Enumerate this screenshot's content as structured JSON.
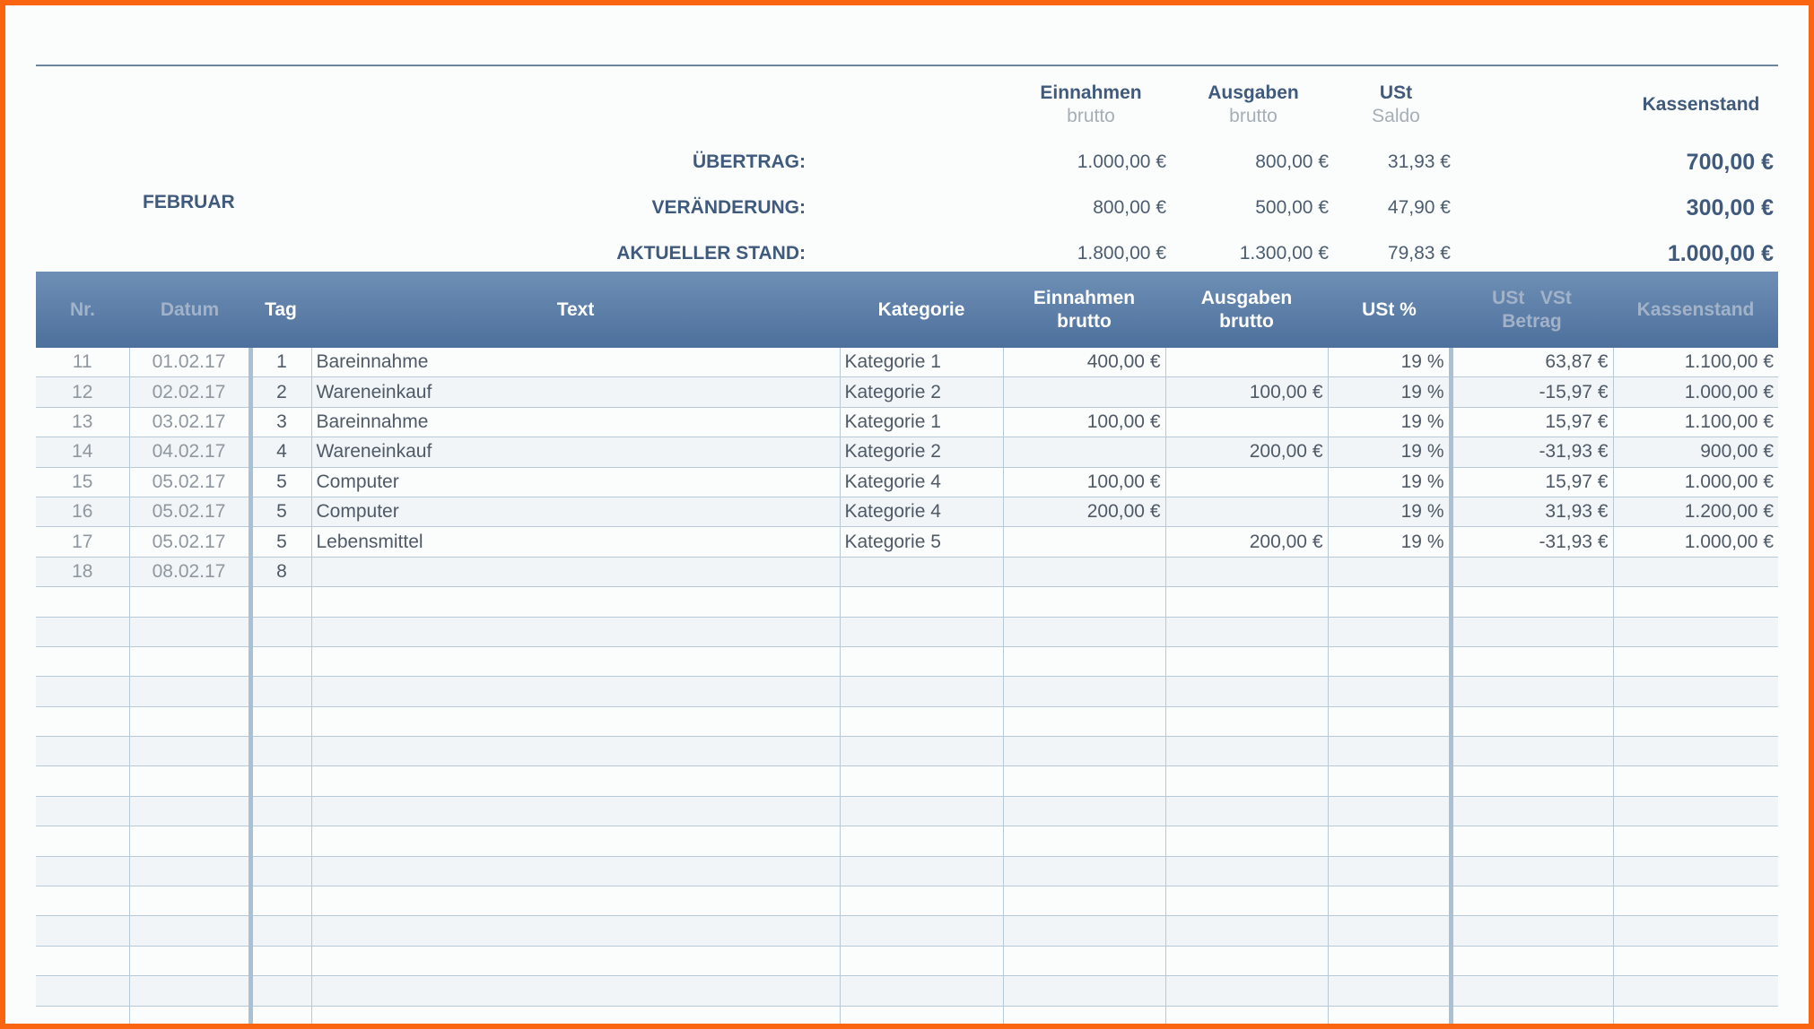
{
  "summary": {
    "headers": [
      {
        "main": "Einnahmen",
        "sub": "brutto"
      },
      {
        "main": "Ausgaben",
        "sub": "brutto"
      },
      {
        "main": "USt",
        "sub": "Saldo"
      },
      {
        "main": "Kassenstand",
        "sub": ""
      }
    ],
    "month": "FEBRUAR",
    "rows": [
      {
        "label": "ÜBERTRAG:",
        "einnahmen": "1.000,00 €",
        "ausgaben": "800,00 €",
        "ust": "31,93 €",
        "kassenstand": "700,00 €"
      },
      {
        "label": "VERÄNDERUNG:",
        "einnahmen": "800,00 €",
        "ausgaben": "500,00 €",
        "ust": "47,90 €",
        "kassenstand": "300,00 €"
      },
      {
        "label": "AKTUELLER STAND:",
        "einnahmen": "1.800,00 €",
        "ausgaben": "1.300,00 €",
        "ust": "79,83 €",
        "kassenstand": "1.000,00 €"
      }
    ]
  },
  "table": {
    "headers": {
      "nr": "Nr.",
      "datum": "Datum",
      "tag": "Tag",
      "text": "Text",
      "kategorie": "Kategorie",
      "einnahmen_1": "Einnahmen",
      "einnahmen_2": "brutto",
      "ausgaben_1": "Ausgaben",
      "ausgaben_2": "brutto",
      "ust_pct": "USt %",
      "ust_betrag_1": "USt   VSt",
      "ust_betrag_2": "Betrag",
      "kassenstand": "Kassenstand"
    },
    "rows": [
      {
        "nr": "11",
        "datum": "01.02.17",
        "tag": "1",
        "text": "Bareinnahme",
        "kategorie": "Kategorie 1",
        "einnahmen": "400,00 €",
        "ausgaben": "",
        "ust_pct": "19 %",
        "ust_betrag": "63,87 €",
        "kassenstand": "1.100,00 €"
      },
      {
        "nr": "12",
        "datum": "02.02.17",
        "tag": "2",
        "text": "Wareneinkauf",
        "kategorie": "Kategorie 2",
        "einnahmen": "",
        "ausgaben": "100,00 €",
        "ust_pct": "19 %",
        "ust_betrag": "-15,97 €",
        "kassenstand": "1.000,00 €"
      },
      {
        "nr": "13",
        "datum": "03.02.17",
        "tag": "3",
        "text": "Bareinnahme",
        "kategorie": "Kategorie 1",
        "einnahmen": "100,00 €",
        "ausgaben": "",
        "ust_pct": "19 %",
        "ust_betrag": "15,97 €",
        "kassenstand": "1.100,00 €"
      },
      {
        "nr": "14",
        "datum": "04.02.17",
        "tag": "4",
        "text": "Wareneinkauf",
        "kategorie": "Kategorie 2",
        "einnahmen": "",
        "ausgaben": "200,00 €",
        "ust_pct": "19 %",
        "ust_betrag": "-31,93 €",
        "kassenstand": "900,00 €"
      },
      {
        "nr": "15",
        "datum": "05.02.17",
        "tag": "5",
        "text": "Computer",
        "kategorie": "Kategorie 4",
        "einnahmen": "100,00 €",
        "ausgaben": "",
        "ust_pct": "19 %",
        "ust_betrag": "15,97 €",
        "kassenstand": "1.000,00 €"
      },
      {
        "nr": "16",
        "datum": "05.02.17",
        "tag": "5",
        "text": "Computer",
        "kategorie": "Kategorie 4",
        "einnahmen": "200,00 €",
        "ausgaben": "",
        "ust_pct": "19 %",
        "ust_betrag": "31,93 €",
        "kassenstand": "1.200,00 €"
      },
      {
        "nr": "17",
        "datum": "05.02.17",
        "tag": "5",
        "text": "Lebensmittel",
        "kategorie": "Kategorie 5",
        "einnahmen": "",
        "ausgaben": "200,00 €",
        "ust_pct": "19 %",
        "ust_betrag": "-31,93 €",
        "kassenstand": "1.000,00 €"
      },
      {
        "nr": "18",
        "datum": "08.02.17",
        "tag": "8",
        "text": "",
        "kategorie": "",
        "einnahmen": "",
        "ausgaben": "",
        "ust_pct": "",
        "ust_betrag": "",
        "kassenstand": ""
      }
    ]
  }
}
